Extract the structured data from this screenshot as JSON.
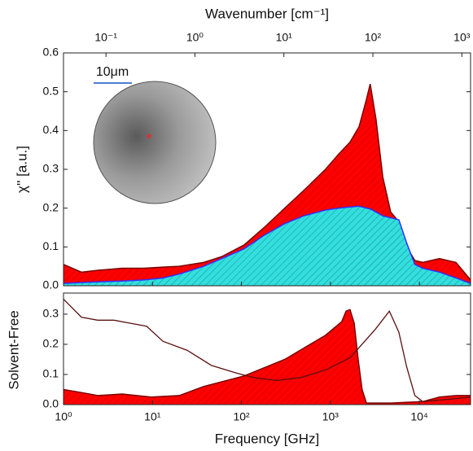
{
  "chart_data": [
    {
      "type": "area",
      "x2label": "Wavenumber [cm⁻¹]",
      "ylabel": "χ'' [a.u.]",
      "annotations": [
        "10μm"
      ],
      "xlog": true,
      "xlim": [
        1,
        37600
      ],
      "xticks": [
        1,
        10,
        100,
        1000,
        10000
      ],
      "x2lim": [
        0.0333,
        1253
      ],
      "x2ticks": [
        {
          "value": 0.1,
          "label": "10⁻¹"
        },
        {
          "value": 1,
          "label": "10⁰"
        },
        {
          "value": 10,
          "label": "10¹"
        },
        {
          "value": 100,
          "label": "10²"
        },
        {
          "value": 1000,
          "label": "10³"
        }
      ],
      "ylim": [
        0,
        0.6
      ],
      "yticks": [
        {
          "value": 0,
          "label": "0.0"
        },
        0.1,
        0.2,
        0.3,
        0.4,
        0.5,
        0.6
      ],
      "series": [
        {
          "color": "#ff0000",
          "line_color": "#7a0000",
          "x": [
            1,
            1.59,
            2.5,
            4.56,
            8,
            13.1,
            20,
            37.5,
            60,
            107,
            180,
            307,
            500,
            880,
            1250,
            1660,
            2100,
            2540,
            2800,
            3250,
            3880,
            4760,
            5880,
            7200,
            8900,
            10900,
            16800,
            25800,
            37600
          ],
          "values": [
            0.055,
            0.035,
            0.04,
            0.045,
            0.045,
            0.048,
            0.05,
            0.06,
            0.075,
            0.105,
            0.15,
            0.2,
            0.245,
            0.3,
            0.34,
            0.37,
            0.41,
            0.48,
            0.52,
            0.43,
            0.28,
            0.19,
            0.165,
            0.1,
            0.065,
            0.06,
            0.07,
            0.06,
            0.015
          ]
        },
        {
          "color": "#33dede",
          "line_color": "#3030ff",
          "x": [
            1,
            1.59,
            2.5,
            4.56,
            8,
            13.1,
            20,
            37.5,
            60,
            107,
            180,
            307,
            500,
            880,
            1250,
            1660,
            2100,
            2540,
            2800,
            3250,
            3880,
            4760,
            5880,
            7200,
            8900,
            10900,
            16800,
            25800,
            37600
          ],
          "values": [
            0.006,
            0.008,
            0.01,
            0.012,
            0.015,
            0.02,
            0.03,
            0.05,
            0.07,
            0.095,
            0.13,
            0.16,
            0.18,
            0.195,
            0.2,
            0.203,
            0.205,
            0.2,
            0.198,
            0.19,
            0.18,
            0.175,
            0.17,
            0.11,
            0.055,
            0.045,
            0.035,
            0.02,
            0.006
          ]
        }
      ]
    },
    {
      "type": "area",
      "xlabel": "Frequency [GHz]",
      "ylabel": "Solvent-Free",
      "xlog": true,
      "xlim": [
        1,
        37600
      ],
      "xticks": [
        {
          "value": 1,
          "label": "10⁰"
        },
        {
          "value": 10,
          "label": "10¹"
        },
        {
          "value": 100,
          "label": "10²"
        },
        {
          "value": 1000,
          "label": "10³"
        },
        {
          "value": 10000,
          "label": "10⁴"
        }
      ],
      "ylim": [
        0,
        0.37
      ],
      "yticks": [
        {
          "value": 0,
          "label": "0.0"
        },
        0.1,
        0.2,
        0.3
      ],
      "series": [
        {
          "color": "#ff0000",
          "line_color": "#7a0000",
          "x": [
            1,
            1.59,
            2.42,
            4.56,
            9.7,
            20,
            37.5,
            107,
            307,
            880,
            1340,
            1500,
            1660,
            1850,
            2050,
            2270,
            2540,
            4760,
            10900,
            16800,
            25800,
            37600
          ],
          "values": [
            0.05,
            0.04,
            0.03,
            0.035,
            0.025,
            0.03,
            0.06,
            0.095,
            0.15,
            0.23,
            0.275,
            0.31,
            0.315,
            0.27,
            0.15,
            0.05,
            0.005,
            0.005,
            0.01,
            0.025,
            0.03,
            0.03
          ]
        },
        {
          "type": "line",
          "color": "#5a1010",
          "x": [
            1,
            1.59,
            2.42,
            3.69,
            5.6,
            8.6,
            13.1,
            24.6,
            46,
            87,
            135,
            250,
            470,
            880,
            1660,
            3200,
            4600,
            5880,
            7200,
            8900,
            10900,
            16800,
            25800,
            37600
          ],
          "values": [
            0.35,
            0.29,
            0.28,
            0.28,
            0.27,
            0.26,
            0.21,
            0.18,
            0.13,
            0.105,
            0.09,
            0.08,
            0.09,
            0.115,
            0.155,
            0.25,
            0.31,
            0.24,
            0.125,
            0.03,
            0.01,
            0.015,
            0.02,
            0.025
          ]
        }
      ]
    }
  ]
}
